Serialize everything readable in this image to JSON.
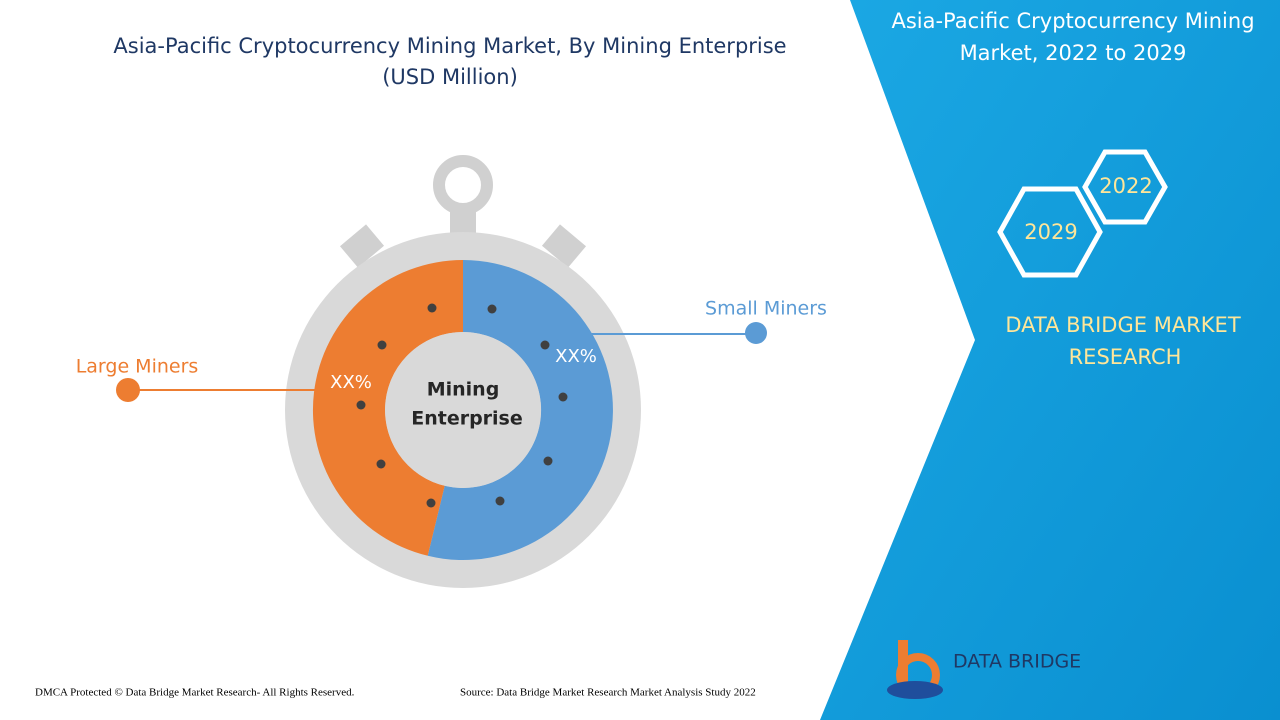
{
  "title": [
    "Asia-Pacific Cryptocurrency Mining Market, By Mining Enterprise",
    "(USD Million)"
  ],
  "center_label": [
    "Mining",
    "Enterprise"
  ],
  "segments": [
    {
      "name": "Large Miners",
      "label": "XX%"
    },
    {
      "name": "Small Miners",
      "label": "XX%"
    }
  ],
  "panel": {
    "title": [
      "Asia-Pacific Cryptocurrency Mining",
      "Market, 2022 to 2029"
    ],
    "years": [
      "2022",
      "2029"
    ],
    "brand": [
      "DATA BRIDGE MARKET",
      "RESEARCH"
    ]
  },
  "logo": "DATA BRIDGE",
  "footer": {
    "copyright": "DMCA Protected © Data Bridge Market Research- All Rights Reserved.",
    "source": "Source: Data Bridge Market Research Market Analysis Study 2022"
  }
}
